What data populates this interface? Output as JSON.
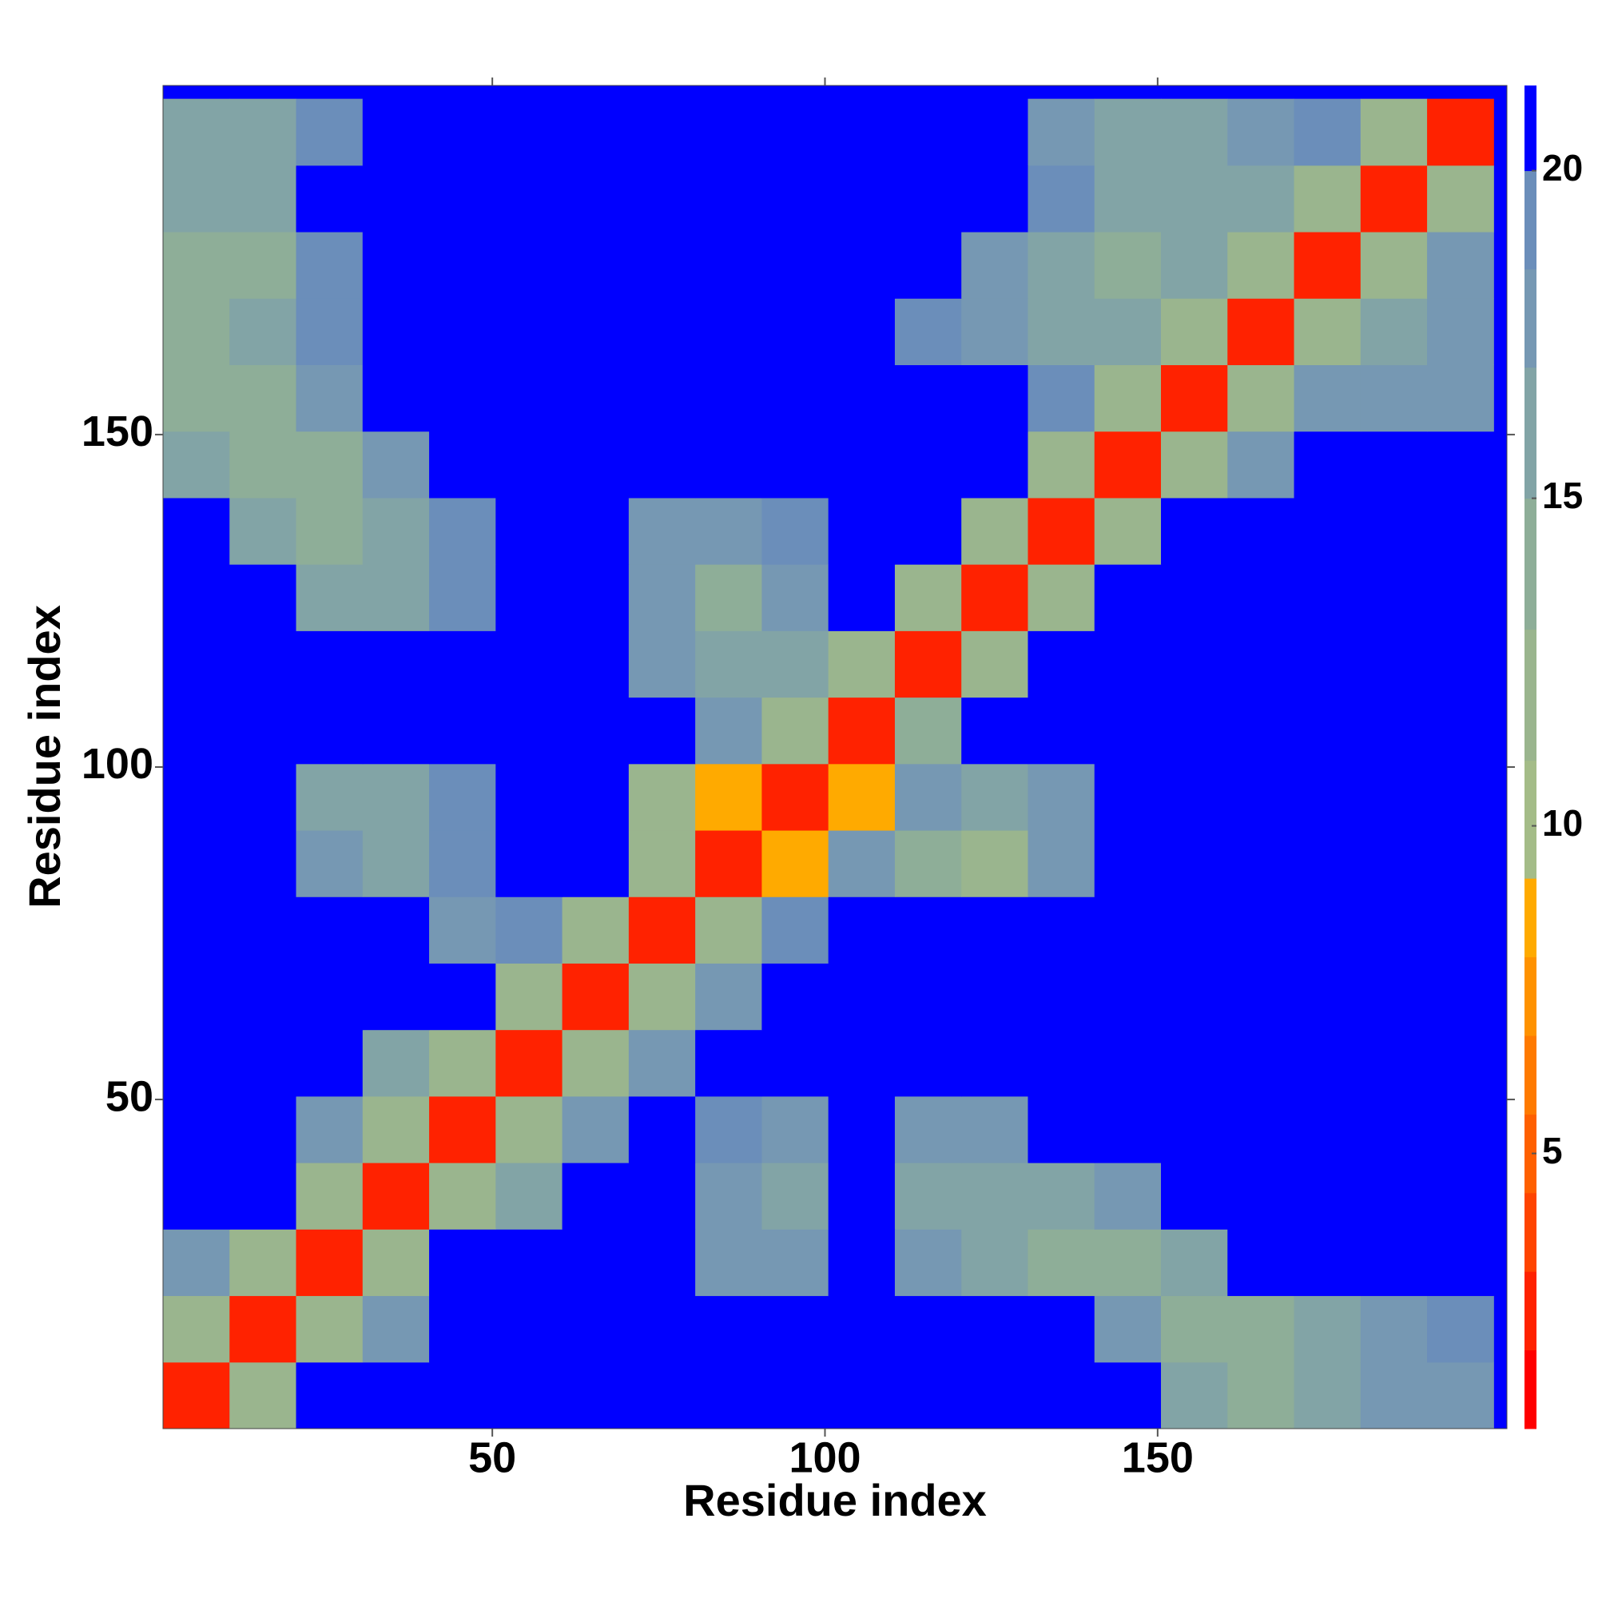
{
  "chart_data": {
    "type": "heatmap",
    "x_label": "Residue index",
    "y_label": "Residue index",
    "xlim": [
      0.5,
      202.5
    ],
    "ylim": [
      0.5,
      202.5
    ],
    "xticks": [
      50,
      100,
      150
    ],
    "yticks": [
      50,
      100,
      150
    ],
    "x_edges": [
      0.5,
      10.5,
      20.5,
      30.5,
      40.5,
      50.5,
      60.5,
      70.5,
      80.5,
      90.5,
      100.5,
      110.5,
      120.5,
      130.5,
      140.5,
      150.5,
      160.5,
      170.5,
      180.5,
      190.5,
      200.5
    ],
    "y_edges": [
      0.5,
      10.5,
      20.5,
      30.5,
      40.5,
      50.5,
      60.5,
      70.5,
      80.5,
      90.5,
      100.5,
      110.5,
      120.5,
      130.5,
      140.5,
      150.5,
      160.5,
      170.5,
      180.5,
      190.5,
      200.5
    ],
    "z": [
      [
        3,
        11,
        21,
        21,
        21,
        21,
        21,
        21,
        21,
        21,
        21,
        21,
        21,
        21,
        21,
        16,
        14,
        15,
        17,
        18
      ],
      [
        11,
        3,
        11,
        18,
        21,
        21,
        21,
        21,
        21,
        21,
        21,
        21,
        21,
        21,
        17,
        13,
        14,
        15,
        17,
        19
      ],
      [
        18,
        11,
        3,
        11,
        21,
        21,
        21,
        21,
        17,
        18,
        21,
        17,
        15,
        14,
        14,
        16,
        21,
        21,
        21,
        21
      ],
      [
        21,
        21,
        11,
        3,
        11,
        16,
        21,
        21,
        17,
        16,
        21,
        16,
        15,
        15,
        17,
        21,
        21,
        21,
        21,
        21
      ],
      [
        21,
        21,
        18,
        11,
        3,
        11,
        17,
        21,
        19,
        18,
        21,
        18,
        18,
        21,
        21,
        21,
        21,
        21,
        21,
        21
      ],
      [
        21,
        21,
        21,
        15,
        11,
        3,
        11,
        18,
        21,
        21,
        21,
        21,
        21,
        21,
        21,
        21,
        21,
        21,
        21,
        21
      ],
      [
        21,
        21,
        21,
        21,
        21,
        11,
        3,
        11,
        18,
        21,
        21,
        21,
        21,
        21,
        21,
        21,
        21,
        21,
        21,
        21
      ],
      [
        21,
        21,
        21,
        21,
        17,
        19,
        11,
        3,
        11,
        19,
        21,
        21,
        21,
        21,
        21,
        21,
        21,
        21,
        21,
        21
      ],
      [
        21,
        21,
        17,
        16,
        19,
        21,
        21,
        11,
        3,
        8,
        18,
        14,
        12,
        17,
        21,
        21,
        21,
        21,
        21,
        21
      ],
      [
        21,
        21,
        16,
        15,
        19,
        21,
        21,
        12,
        8,
        3,
        9,
        18,
        15,
        18,
        21,
        21,
        21,
        21,
        21,
        21
      ],
      [
        21,
        21,
        21,
        21,
        21,
        21,
        21,
        21,
        18,
        11,
        3,
        14,
        21,
        21,
        21,
        21,
        21,
        21,
        21,
        21
      ],
      [
        21,
        21,
        21,
        21,
        21,
        21,
        21,
        17,
        15,
        15,
        11,
        3,
        11,
        21,
        21,
        21,
        21,
        21,
        21,
        21
      ],
      [
        21,
        21,
        16,
        16,
        19,
        21,
        21,
        18,
        14,
        18,
        21,
        11,
        3,
        11,
        21,
        21,
        21,
        21,
        21,
        21
      ],
      [
        21,
        15,
        13,
        15,
        19,
        21,
        21,
        18,
        17,
        19,
        21,
        21,
        11,
        3,
        11,
        21,
        21,
        21,
        21,
        21
      ],
      [
        15,
        13,
        14,
        18,
        21,
        21,
        21,
        21,
        21,
        21,
        21,
        21,
        21,
        11,
        3,
        11,
        18,
        21,
        21,
        21
      ],
      [
        13,
        14,
        17,
        21,
        21,
        21,
        21,
        21,
        21,
        21,
        21,
        21,
        21,
        19,
        11,
        3,
        11,
        17,
        18,
        18
      ],
      [
        13,
        15,
        19,
        21,
        21,
        21,
        21,
        21,
        21,
        21,
        21,
        19,
        17,
        15,
        15,
        11,
        3,
        11,
        16,
        17
      ],
      [
        14,
        14,
        19,
        21,
        21,
        21,
        21,
        21,
        21,
        21,
        21,
        21,
        18,
        16,
        14,
        15,
        11,
        3,
        11,
        17
      ],
      [
        15,
        16,
        20,
        21,
        21,
        21,
        21,
        21,
        21,
        21,
        21,
        21,
        21,
        19,
        16,
        15,
        16,
        11,
        3,
        11
      ],
      [
        15,
        16,
        19,
        21,
        21,
        21,
        21,
        21,
        21,
        21,
        21,
        21,
        21,
        18,
        16,
        16,
        17,
        19,
        11,
        3
      ]
    ],
    "levels": [
      0.8,
      2,
      3.2,
      4.4,
      5.6,
      6.8,
      8,
      9.2,
      11,
      13,
      15,
      17,
      18.5,
      20,
      21.3
    ],
    "colors": [
      "#ff0000",
      "#ff2200",
      "#ff4400",
      "#ff6000",
      "#ff7a00",
      "#ff9200",
      "#ffaa00",
      "#a4bc88",
      "#9ab58e",
      "#8eae98",
      "#82a4a6",
      "#7698b3",
      "#6b8eba",
      "#0000ff"
    ],
    "cbar_ticks": [
      5,
      10,
      15,
      20
    ]
  }
}
